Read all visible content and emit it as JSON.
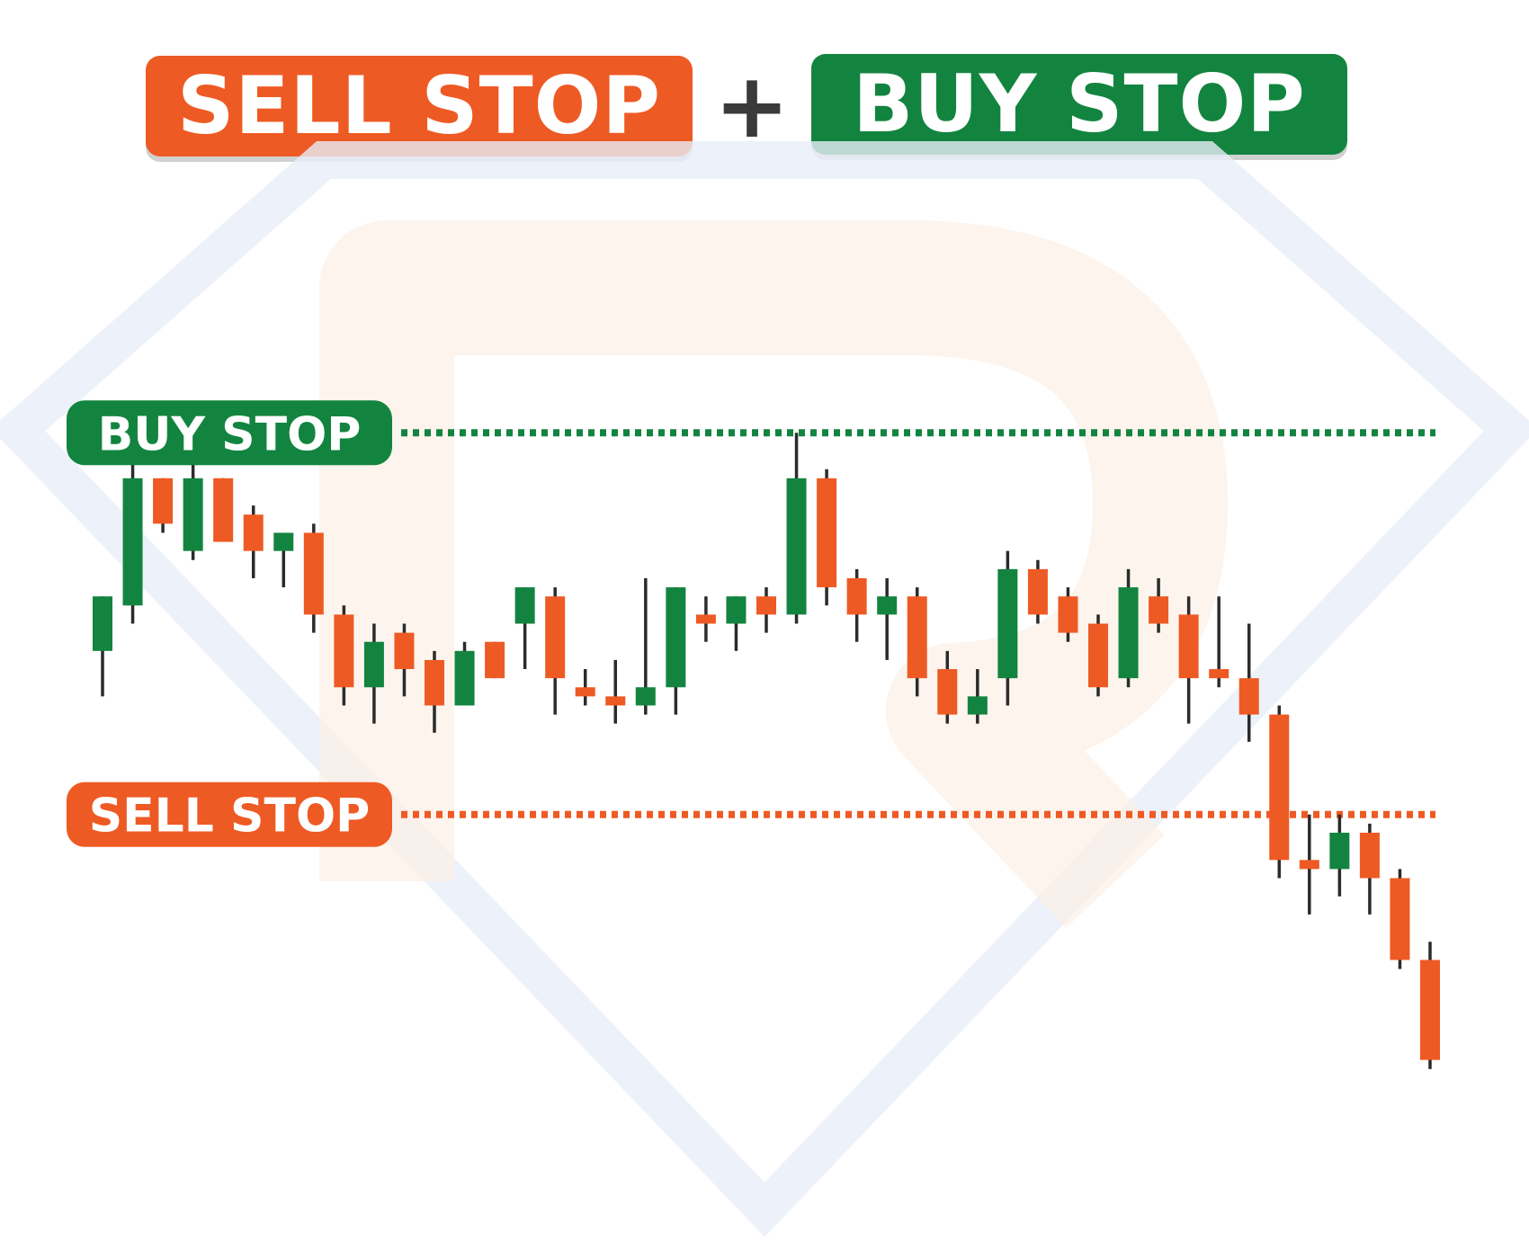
{
  "title": {
    "sell_label": "SELL STOP",
    "plus": "+",
    "buy_label": "BUY STOP"
  },
  "colors": {
    "sell": "#EE5A24",
    "buy": "#13843F",
    "wick": "#2b2b2b",
    "watermark": "#E9EEF8"
  },
  "levels": [
    {
      "name": "buy_stop",
      "label": "BUY STOP",
      "price": 100,
      "color": "#13843F"
    },
    {
      "name": "sell_stop",
      "label": "SELL STOP",
      "price": 58,
      "color": "#EE5A24"
    }
  ],
  "chart_data": {
    "type": "candlestick",
    "title": "",
    "xlabel": "",
    "ylabel": "",
    "ylim": [
      18,
      112
    ],
    "candles": [
      {
        "o": 76,
        "h": 82,
        "l": 71,
        "c": 82
      },
      {
        "o": 81,
        "h": 97,
        "l": 79,
        "c": 95
      },
      {
        "o": 95,
        "h": 95,
        "l": 89,
        "c": 90
      },
      {
        "o": 87,
        "h": 99,
        "l": 86,
        "c": 95
      },
      {
        "o": 95,
        "h": 95,
        "l": 88,
        "c": 88
      },
      {
        "o": 91,
        "h": 92,
        "l": 84,
        "c": 87
      },
      {
        "o": 87,
        "h": 89,
        "l": 83,
        "c": 89
      },
      {
        "o": 89,
        "h": 90,
        "l": 78,
        "c": 80
      },
      {
        "o": 80,
        "h": 81,
        "l": 70,
        "c": 72
      },
      {
        "o": 72,
        "h": 79,
        "l": 68,
        "c": 77
      },
      {
        "o": 78,
        "h": 79,
        "l": 71,
        "c": 74
      },
      {
        "o": 75,
        "h": 76,
        "l": 67,
        "c": 70
      },
      {
        "o": 70,
        "h": 77,
        "l": 70,
        "c": 76
      },
      {
        "o": 77,
        "h": 77,
        "l": 73,
        "c": 73
      },
      {
        "o": 79,
        "h": 83,
        "l": 74,
        "c": 83
      },
      {
        "o": 82,
        "h": 83,
        "l": 69,
        "c": 73
      },
      {
        "o": 72,
        "h": 74,
        "l": 70,
        "c": 71
      },
      {
        "o": 71,
        "h": 75,
        "l": 68,
        "c": 70
      },
      {
        "o": 70,
        "h": 84,
        "l": 69,
        "c": 72
      },
      {
        "o": 72,
        "h": 83,
        "l": 69,
        "c": 83
      },
      {
        "o": 80,
        "h": 82,
        "l": 77,
        "c": 79
      },
      {
        "o": 79,
        "h": 82,
        "l": 76,
        "c": 82
      },
      {
        "o": 82,
        "h": 83,
        "l": 78,
        "c": 80
      },
      {
        "o": 80,
        "h": 100,
        "l": 79,
        "c": 95
      },
      {
        "o": 95,
        "h": 96,
        "l": 81,
        "c": 83
      },
      {
        "o": 84,
        "h": 85,
        "l": 77,
        "c": 80
      },
      {
        "o": 80,
        "h": 84,
        "l": 75,
        "c": 82
      },
      {
        "o": 82,
        "h": 83,
        "l": 71,
        "c": 73
      },
      {
        "o": 74,
        "h": 76,
        "l": 68,
        "c": 69
      },
      {
        "o": 69,
        "h": 74,
        "l": 68,
        "c": 71
      },
      {
        "o": 73,
        "h": 87,
        "l": 70,
        "c": 85
      },
      {
        "o": 85,
        "h": 86,
        "l": 79,
        "c": 80
      },
      {
        "o": 82,
        "h": 83,
        "l": 77,
        "c": 78
      },
      {
        "o": 79,
        "h": 80,
        "l": 71,
        "c": 72
      },
      {
        "o": 73,
        "h": 85,
        "l": 72,
        "c": 83
      },
      {
        "o": 82,
        "h": 84,
        "l": 78,
        "c": 79
      },
      {
        "o": 80,
        "h": 82,
        "l": 68,
        "c": 73
      },
      {
        "o": 74,
        "h": 82,
        "l": 72,
        "c": 73
      },
      {
        "o": 73,
        "h": 79,
        "l": 66,
        "c": 69
      },
      {
        "o": 69,
        "h": 70,
        "l": 51,
        "c": 53
      },
      {
        "o": 53,
        "h": 58,
        "l": 47,
        "c": 52
      },
      {
        "o": 52,
        "h": 58,
        "l": 49,
        "c": 56
      },
      {
        "o": 56,
        "h": 57,
        "l": 47,
        "c": 51
      },
      {
        "o": 51,
        "h": 52,
        "l": 41,
        "c": 42
      },
      {
        "o": 42,
        "h": 44,
        "l": 30,
        "c": 31
      }
    ]
  }
}
